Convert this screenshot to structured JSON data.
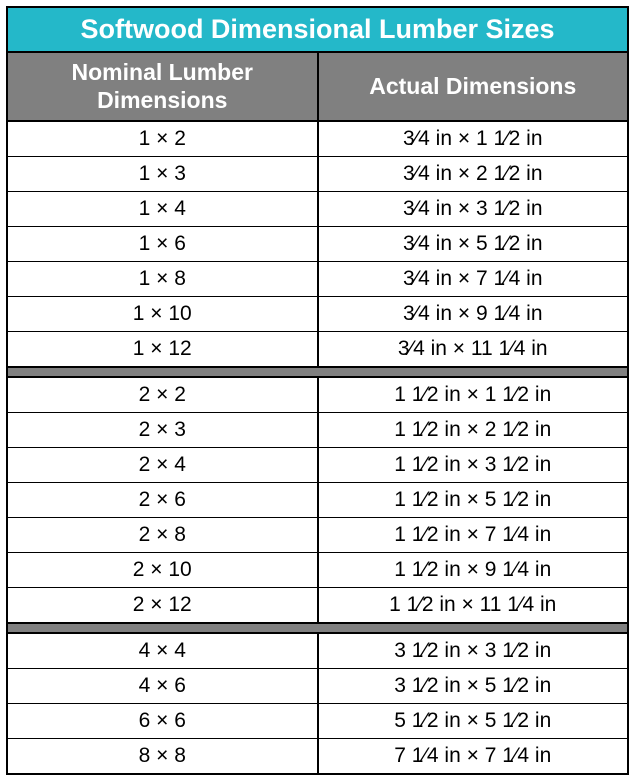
{
  "title": "Softwood Dimensional Lumber Sizes",
  "columns": {
    "nominal": "Nominal Lumber Dimensions",
    "actual": "Actual Dimensions"
  },
  "colors": {
    "title_bg": "#24b8c9",
    "title_text": "#ffffff",
    "header_bg": "#808080",
    "header_text": "#ffffff",
    "cell_bg": "#ffffff",
    "cell_text": "#000000",
    "border": "#000000",
    "separator_bg": "#808080"
  },
  "fontsize": {
    "title": 27,
    "header": 23,
    "data": 21
  },
  "groups": [
    {
      "rows": [
        {
          "nominal": "1 × 2",
          "actual": "3⁄4 in × 1 1⁄2 in"
        },
        {
          "nominal": "1 × 3",
          "actual": "3⁄4 in × 2 1⁄2 in"
        },
        {
          "nominal": "1 × 4",
          "actual": "3⁄4 in × 3 1⁄2 in"
        },
        {
          "nominal": "1 × 6",
          "actual": "3⁄4 in × 5 1⁄2 in"
        },
        {
          "nominal": "1 × 8",
          "actual": "3⁄4 in × 7 1⁄4 in"
        },
        {
          "nominal": "1 × 10",
          "actual": "3⁄4 in × 9 1⁄4 in"
        },
        {
          "nominal": "1 × 12",
          "actual": "3⁄4 in × 11 1⁄4 in"
        }
      ]
    },
    {
      "rows": [
        {
          "nominal": "2 × 2",
          "actual": "1 1⁄2 in × 1 1⁄2 in"
        },
        {
          "nominal": "2 × 3",
          "actual": "1 1⁄2 in × 2 1⁄2 in"
        },
        {
          "nominal": "2 × 4",
          "actual": "1 1⁄2 in × 3 1⁄2 in"
        },
        {
          "nominal": "2 × 6",
          "actual": "1 1⁄2 in × 5 1⁄2 in"
        },
        {
          "nominal": "2 × 8",
          "actual": "1 1⁄2 in × 7 1⁄4 in"
        },
        {
          "nominal": "2 × 10",
          "actual": "1 1⁄2 in × 9 1⁄4 in"
        },
        {
          "nominal": "2 × 12",
          "actual": "1 1⁄2 in × 11 1⁄4 in"
        }
      ]
    },
    {
      "rows": [
        {
          "nominal": "4 × 4",
          "actual": "3 1⁄2 in × 3 1⁄2 in"
        },
        {
          "nominal": "4 × 6",
          "actual": "3 1⁄2 in × 5 1⁄2 in"
        },
        {
          "nominal": "6 × 6",
          "actual": "5 1⁄2 in × 5 1⁄2 in"
        },
        {
          "nominal": "8 × 8",
          "actual": "7 1⁄4 in × 7 1⁄4 in"
        }
      ]
    }
  ]
}
